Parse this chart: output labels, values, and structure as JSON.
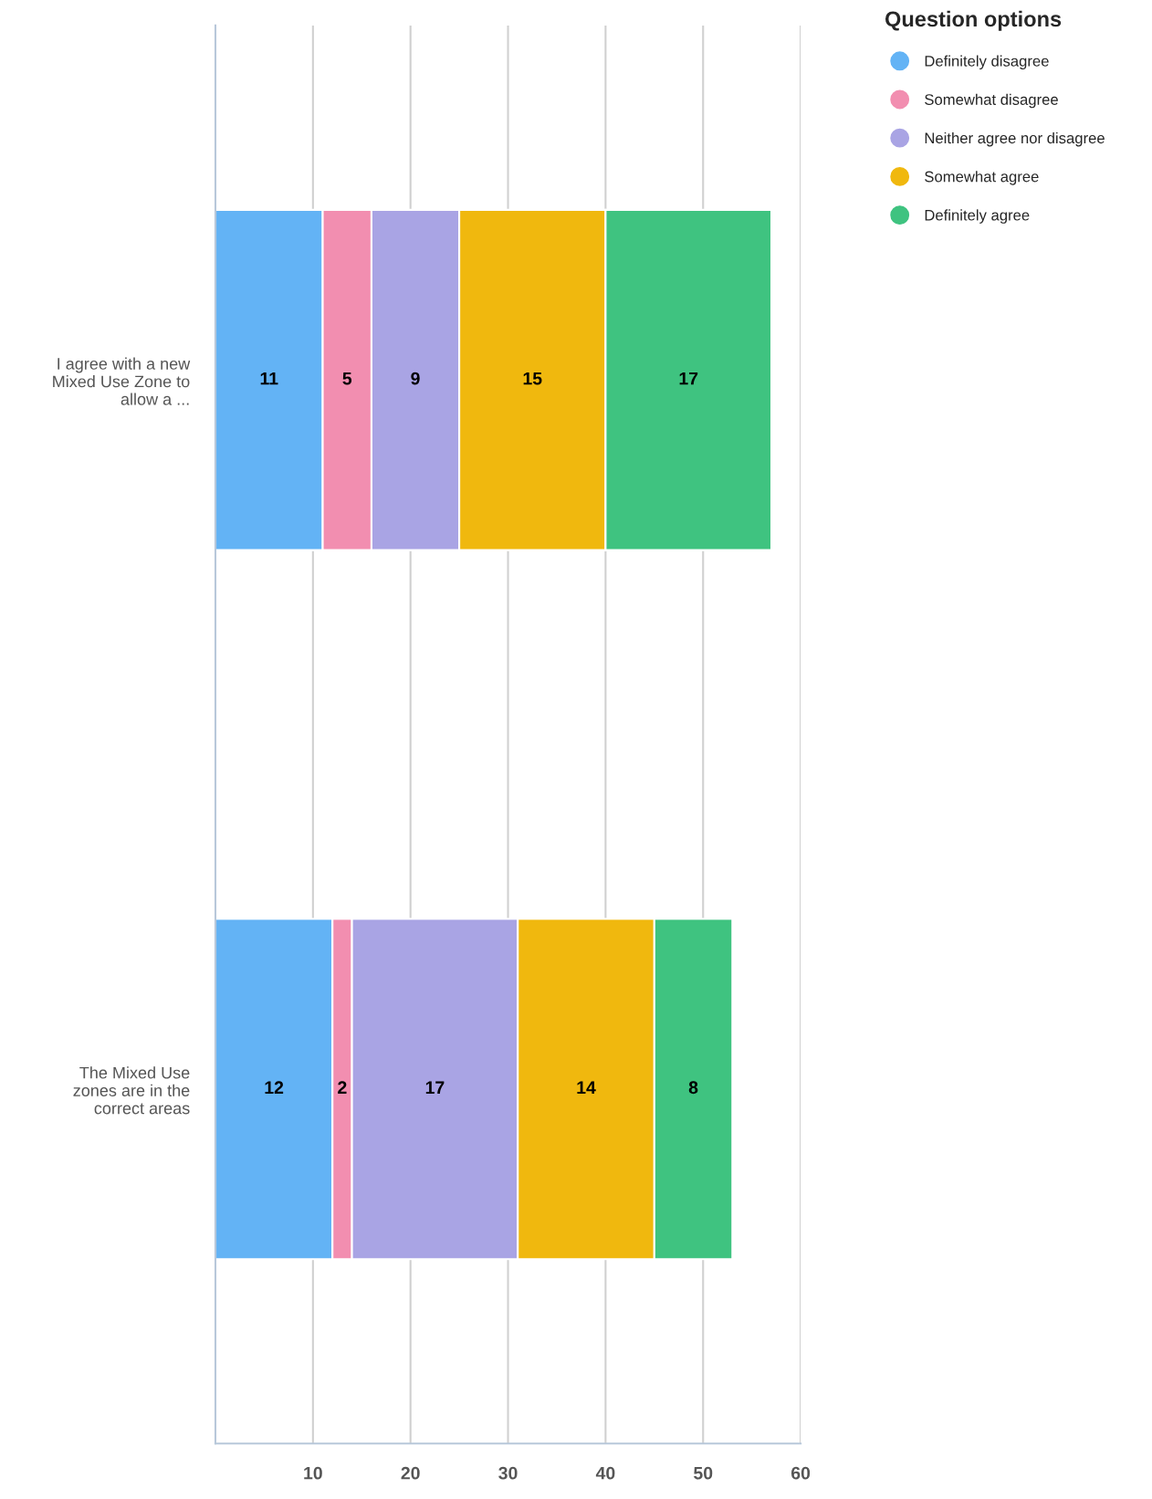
{
  "chart_data": {
    "type": "bar",
    "orientation": "horizontal",
    "stacked": true,
    "categories": [
      "I agree with a new Mixed Use Zone to allow a ...",
      "The Mixed Use zones are in the correct areas"
    ],
    "series": [
      {
        "name": "Definitely disagree",
        "color": "#63b3f5",
        "values": [
          11,
          12
        ]
      },
      {
        "name": "Somewhat disagree",
        "color": "#f28eb0",
        "values": [
          5,
          2
        ]
      },
      {
        "name": "Neither agree nor disagree",
        "color": "#a9a4e4",
        "values": [
          9,
          17
        ]
      },
      {
        "name": "Somewhat agree",
        "color": "#f0b80e",
        "values": [
          15,
          14
        ]
      },
      {
        "name": "Definitely agree",
        "color": "#3fc380",
        "values": [
          17,
          8
        ]
      }
    ],
    "legend_title": "Question options",
    "legend": "top right",
    "xlim": [
      0,
      60
    ],
    "xticks": [
      10,
      20,
      30,
      40,
      50,
      60
    ],
    "grid": "x",
    "data_labels": true,
    "marker": "circle"
  }
}
